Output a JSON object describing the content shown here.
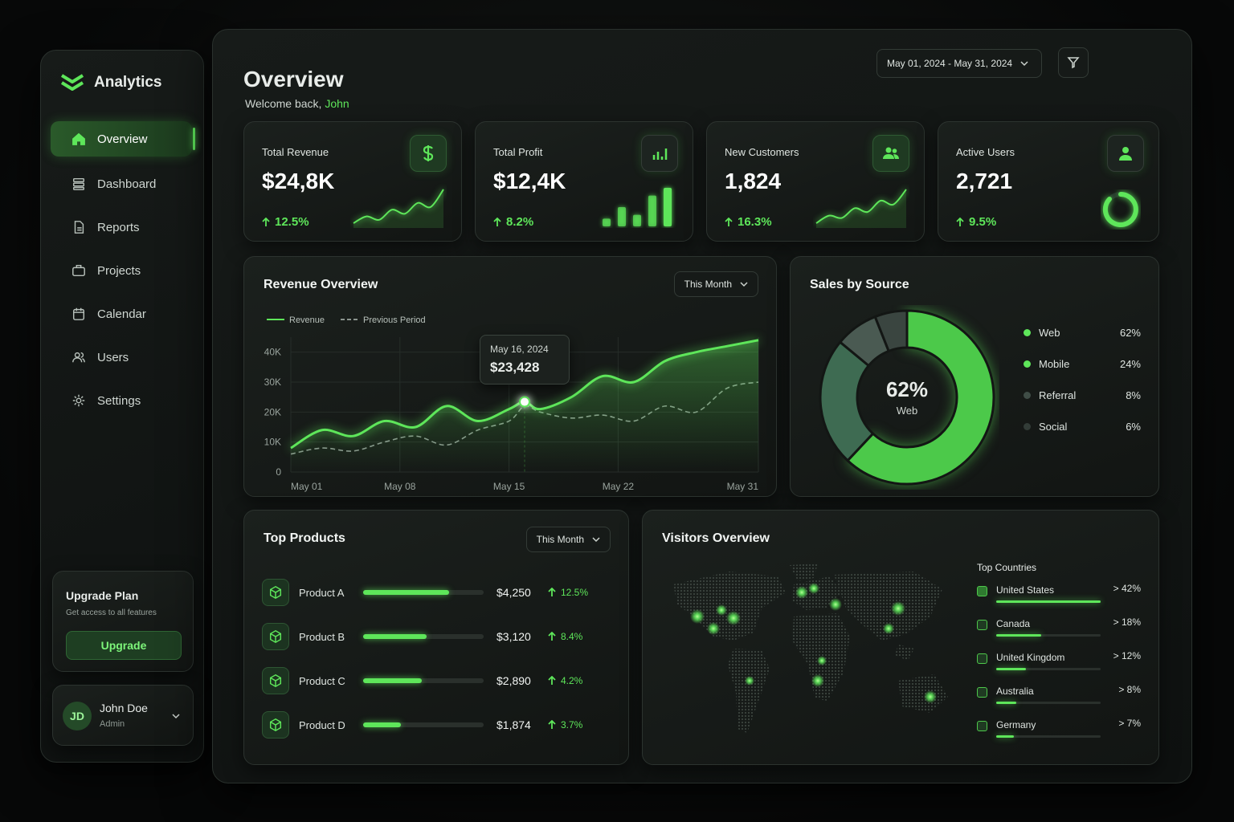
{
  "sidebar": {
    "brand": "Analytics",
    "nav": [
      "Overview",
      "Dashboard",
      "Reports",
      "Projects",
      "Calendar",
      "Users",
      "Settings"
    ],
    "upgrade": {
      "title": "Upgrade Plan",
      "text": "Get access to all features",
      "button": "Upgrade"
    },
    "user": {
      "initials": "JD",
      "name": "John Doe",
      "role": "Admin"
    }
  },
  "header": {
    "title": "Overview",
    "welcome": "Welcome back,",
    "user": "John",
    "date_range": "May 01, 2024 - May 31, 2024"
  },
  "kpis": [
    {
      "label": "Total Revenue",
      "value": "$24,8K",
      "change": "12.5%",
      "sparkline": [
        2,
        3,
        2.5,
        4,
        3.4,
        5,
        4.4,
        7
      ]
    },
    {
      "label": "Total Profit",
      "value": "$12,4K",
      "change": "8.2%",
      "bars": [
        2,
        5,
        3,
        8,
        10
      ]
    },
    {
      "label": "New Customers",
      "value": "1,824",
      "change": "16.3%",
      "sparkline": [
        1,
        2,
        1.7,
        3,
        2.5,
        4,
        3.5,
        5.5
      ]
    },
    {
      "label": "Active Users",
      "value": "2,721",
      "change": "9.5%"
    }
  ],
  "revenue_overview": {
    "type": "line",
    "title": "Revenue Overview",
    "period": "This Month",
    "x": [
      1,
      3,
      5,
      7,
      9,
      11,
      13,
      15,
      16,
      17,
      19,
      21,
      23,
      25,
      27,
      29,
      31
    ],
    "xlim": [
      1,
      31
    ],
    "xticks": [
      {
        "value": 1,
        "label": "May 01"
      },
      {
        "value": 8,
        "label": "May 08"
      },
      {
        "value": 15,
        "label": "May 15"
      },
      {
        "value": 22,
        "label": "May 22"
      },
      {
        "value": 31,
        "label": "May 31"
      }
    ],
    "ylim": [
      0,
      45000
    ],
    "yticks": [
      0,
      {
        "value": 10000,
        "label": "10K"
      },
      {
        "value": 20000,
        "label": "20K"
      },
      {
        "value": 30000,
        "label": "30K"
      },
      {
        "value": 40000,
        "label": "40K"
      }
    ],
    "grid": true,
    "series": [
      {
        "name": "Revenue",
        "color": "#5ee65a",
        "values": [
          8000,
          14000,
          12000,
          17000,
          15000,
          22000,
          17000,
          21000,
          23428,
          21000,
          25000,
          32000,
          30000,
          37000,
          40000,
          42000,
          44000
        ]
      },
      {
        "name": "Previous Period",
        "color": "#8a948e",
        "dashed": true,
        "values": [
          6000,
          8000,
          7000,
          10000,
          12000,
          9000,
          14000,
          17000,
          22000,
          20000,
          18000,
          19000,
          17000,
          22000,
          20000,
          28000,
          30000
        ]
      }
    ],
    "tooltip": {
      "date": "May 16, 2024",
      "x": 16,
      "value": 23428,
      "value_label": "$23,428"
    }
  },
  "sales_by_source": {
    "type": "pie",
    "title": "Sales by Source",
    "categories": [
      "Web",
      "Mobile",
      "Referral",
      "Social"
    ],
    "values": [
      62,
      24,
      8,
      6
    ],
    "value_labels": [
      "62%",
      "24%",
      "8%",
      "6%"
    ],
    "colors": [
      "#4cc94a",
      "#3e6b52",
      "#4a5a52",
      "#3a4540"
    ]
  },
  "top_products": {
    "title": "Top Products",
    "period": "This Month",
    "products": [
      "Product A",
      "Product B",
      "Product C",
      "Product D"
    ],
    "values": [
      4250,
      3120,
      2890,
      1874
    ],
    "value_labels": [
      "$4,250",
      "$3,120",
      "$2,890",
      "$1,874"
    ],
    "changes": [
      "12.5%",
      "8.4%",
      "4.2%",
      "3.7%"
    ]
  },
  "visitors": {
    "title": "Visitors Overview",
    "top_countries_title": "Top Countries",
    "countries": [
      "United States",
      "Canada",
      "United Kingdom",
      "Australia",
      "Germany"
    ],
    "values": [
      42,
      18,
      12,
      8,
      7
    ],
    "value_labels": [
      "> 42%",
      "> 18%",
      "> 12%",
      "> 8%",
      "> 7%"
    ]
  }
}
